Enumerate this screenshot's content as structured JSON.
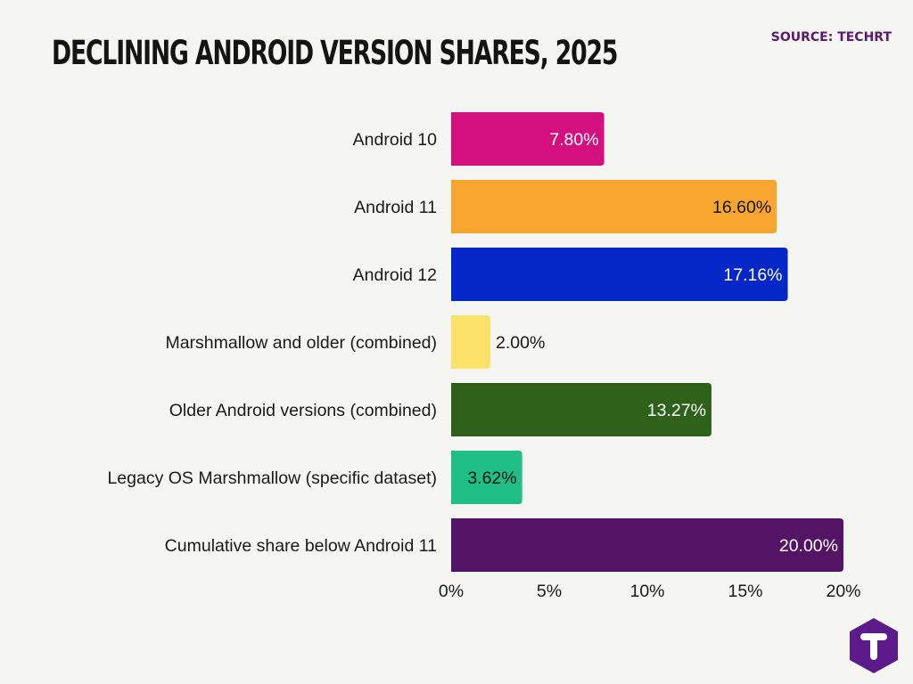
{
  "header": {
    "title": "DECLINING ANDROID VERSION SHARES, 2025",
    "source": "SOURCE: TECHRT"
  },
  "logo": {
    "letter": "T",
    "color": "#5c1a8a",
    "icon": "techrt-t-logo-icon"
  },
  "chart_data": {
    "type": "bar",
    "orientation": "horizontal",
    "title": "DECLINING ANDROID VERSION SHARES, 2025",
    "xlabel": "",
    "ylabel": "",
    "xlim": [
      0,
      20
    ],
    "xticks": [
      "0%",
      "5%",
      "10%",
      "15%",
      "20%"
    ],
    "grid": false,
    "categories": [
      "Android 10",
      "Android 11",
      "Android 12",
      "Marshmallow and older (combined)",
      "Older Android versions (combined)",
      "Legacy OS Marshmallow (specific dataset)",
      "Cumulative share below Android 11"
    ],
    "values": [
      7.8,
      16.6,
      17.16,
      2.0,
      13.27,
      3.62,
      20.0
    ],
    "value_labels": [
      "7.80%",
      "16.60%",
      "17.16%",
      "2.00%",
      "13.27%",
      "3.62%",
      "20.00%"
    ],
    "colors": [
      "#d4107f",
      "#f9a630",
      "#0627c8",
      "#fde26a",
      "#2e6119",
      "#1fbf85",
      "#541465"
    ],
    "label_colors": [
      "#ffffff",
      "#141414",
      "#ffffff",
      "#141414",
      "#ffffff",
      "#141414",
      "#ffffff"
    ],
    "label_inside": [
      true,
      true,
      true,
      false,
      true,
      true,
      true
    ]
  }
}
